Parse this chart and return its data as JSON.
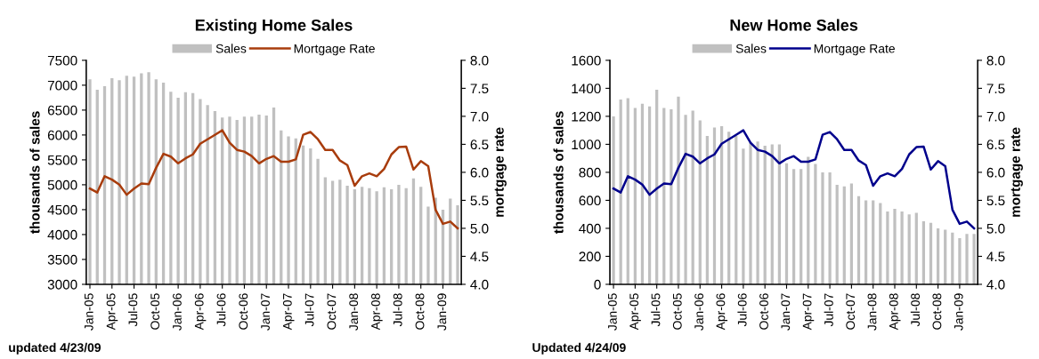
{
  "chart_data": [
    {
      "type": "bar",
      "title": "Existing Home Sales",
      "ylabel": "thousands of sales",
      "y2label": "mortgage rate",
      "categories": [
        "Jan-05",
        null,
        null,
        "Apr-05",
        null,
        null,
        "Jul-05",
        null,
        null,
        "Oct-05",
        null,
        null,
        "Jan-06",
        null,
        null,
        "Apr-06",
        null,
        null,
        "Jul-06",
        null,
        null,
        "Oct-06",
        null,
        null,
        "Jan-07",
        null,
        null,
        "Apr-07",
        null,
        null,
        "Jul-07",
        null,
        null,
        "Oct-07",
        null,
        null,
        "Jan-08",
        null,
        null,
        "Apr-08",
        null,
        null,
        "Jul-08",
        null,
        null,
        "Oct-08",
        null,
        null,
        "Jan-09",
        null,
        null
      ],
      "series": [
        {
          "name": "Sales",
          "color": "#c0c0c0",
          "values": [
            7120,
            6910,
            6980,
            7140,
            7100,
            7190,
            7170,
            7240,
            7260,
            7120,
            7050,
            6870,
            6750,
            6860,
            6840,
            6720,
            6600,
            6480,
            6350,
            6370,
            6300,
            6370,
            6370,
            6410,
            6390,
            6550,
            6090,
            5970,
            5930,
            5790,
            5730,
            5520,
            5150,
            5080,
            5100,
            4980,
            4910,
            4960,
            4930,
            4870,
            4950,
            4910,
            5000,
            4930,
            5130,
            4960,
            4560,
            4740,
            4500,
            4720,
            4590
          ]
        },
        {
          "name": "Mortgage Rate",
          "type": "line",
          "axis": "y2",
          "color": "#a83c0c",
          "values": [
            5.71,
            5.64,
            5.93,
            5.87,
            5.78,
            5.6,
            5.71,
            5.8,
            5.79,
            6.08,
            6.33,
            6.28,
            6.16,
            6.25,
            6.32,
            6.51,
            6.59,
            6.67,
            6.75,
            6.53,
            6.4,
            6.37,
            6.29,
            6.16,
            6.24,
            6.29,
            6.19,
            6.19,
            6.23,
            6.67,
            6.72,
            6.59,
            6.4,
            6.4,
            6.21,
            6.13,
            5.76,
            5.93,
            5.98,
            5.93,
            6.06,
            6.32,
            6.45,
            6.46,
            6.05,
            6.2,
            6.11,
            5.33,
            5.08,
            5.12,
            5.0
          ]
        }
      ],
      "ylim": [
        3000,
        7500
      ],
      "yticks": [
        3000,
        3500,
        4000,
        4500,
        5000,
        5500,
        6000,
        6500,
        7000,
        7500
      ],
      "y2lim": [
        4,
        8
      ],
      "y2ticks": [
        {
          "value": 4,
          "label": "4.0"
        },
        {
          "value": 4.5,
          "label": "4.5"
        },
        {
          "value": 5,
          "label": "5.0"
        },
        {
          "value": 5.5,
          "label": "5.5"
        },
        {
          "value": 6,
          "label": "6.0"
        },
        {
          "value": 6.5,
          "label": "6.5"
        },
        {
          "value": 7,
          "label": "7.0"
        },
        {
          "value": 7.5,
          "label": "7.5"
        },
        {
          "value": 8,
          "label": "8.0"
        }
      ],
      "legend": "top",
      "grid": false,
      "annotations": [
        "updated 4/23/09"
      ]
    },
    {
      "type": "bar",
      "title": "New Home Sales",
      "ylabel": "thousands of sales",
      "y2label": "mortgage rate",
      "categories": [
        "Jan-05",
        null,
        null,
        "Apr-05",
        null,
        null,
        "Jul-05",
        null,
        null,
        "Oct-05",
        null,
        null,
        "Jan-06",
        null,
        null,
        "Apr-06",
        null,
        null,
        "Jul-06",
        null,
        null,
        "Oct-06",
        null,
        null,
        "Jan-07",
        null,
        null,
        "Apr-07",
        null,
        null,
        "Jul-07",
        null,
        null,
        "Oct-07",
        null,
        null,
        "Jan-08",
        null,
        null,
        "Apr-08",
        null,
        null,
        "Jul-08",
        null,
        null,
        "Oct-08",
        null,
        null,
        "Jan-09",
        null,
        null
      ],
      "series": [
        {
          "name": "Sales",
          "color": "#c0c0c0",
          "values": [
            1200,
            1320,
            1330,
            1260,
            1290,
            1270,
            1390,
            1260,
            1250,
            1340,
            1210,
            1240,
            1170,
            1060,
            1120,
            1130,
            1090,
            1060,
            970,
            1010,
            1020,
            990,
            1000,
            1000,
            865,
            823,
            823,
            910,
            860,
            800,
            800,
            710,
            700,
            720,
            630,
            600,
            600,
            580,
            520,
            540,
            520,
            500,
            510,
            450,
            440,
            400,
            390,
            370,
            330,
            360,
            360
          ]
        },
        {
          "name": "Mortgage Rate",
          "type": "line",
          "axis": "y2",
          "color": "#00008c",
          "values": [
            5.71,
            5.64,
            5.93,
            5.87,
            5.78,
            5.6,
            5.71,
            5.8,
            5.79,
            6.08,
            6.33,
            6.28,
            6.16,
            6.25,
            6.32,
            6.51,
            6.59,
            6.67,
            6.75,
            6.53,
            6.4,
            6.37,
            6.29,
            6.16,
            6.24,
            6.29,
            6.19,
            6.19,
            6.23,
            6.67,
            6.72,
            6.59,
            6.4,
            6.4,
            6.21,
            6.13,
            5.76,
            5.93,
            5.98,
            5.93,
            6.06,
            6.32,
            6.45,
            6.46,
            6.05,
            6.2,
            6.11,
            5.33,
            5.08,
            5.12,
            5.0
          ]
        }
      ],
      "ylim": [
        0,
        1600
      ],
      "yticks": [
        0,
        200,
        400,
        600,
        800,
        1000,
        1200,
        1400,
        1600
      ],
      "y2lim": [
        4,
        8
      ],
      "y2ticks": [
        {
          "value": 4,
          "label": "4.0"
        },
        {
          "value": 4.5,
          "label": "4.5"
        },
        {
          "value": 5,
          "label": "5.0"
        },
        {
          "value": 5.5,
          "label": "5.5"
        },
        {
          "value": 6,
          "label": "6.0"
        },
        {
          "value": 6.5,
          "label": "6.5"
        },
        {
          "value": 7,
          "label": "7.0"
        },
        {
          "value": 7.5,
          "label": "7.5"
        },
        {
          "value": 8,
          "label": "8.0"
        }
      ],
      "legend": "top",
      "grid": false,
      "annotations": [
        "Updated 4/24/09"
      ]
    }
  ]
}
